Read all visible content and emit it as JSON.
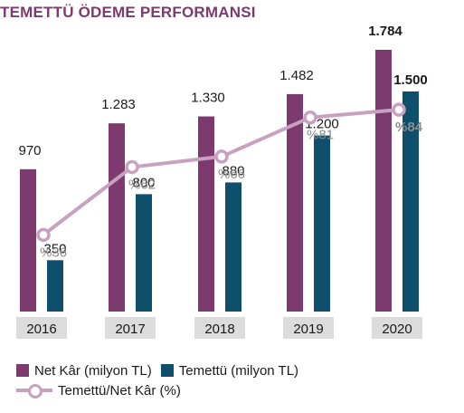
{
  "colors": {
    "title": "#7c3a6e",
    "net_kar": "#7c3a6e",
    "temettu": "#0e4f6b",
    "line": "#c9a1c0",
    "year_box": "#dcdcdc"
  },
  "legend": {
    "net_kar": "Net Kâr (milyon TL)",
    "temettu": "Temettü (milyon TL)",
    "ratio": "Temettü/Net Kâr (%)"
  },
  "chart_data": {
    "type": "bar",
    "title": "TEMETTÜ ÖDEME PERFORMANSI",
    "categories": [
      "2016",
      "2017",
      "2018",
      "2019",
      "2020"
    ],
    "series": [
      {
        "name": "Net Kâr (milyon TL)",
        "values": [
          970,
          1283,
          1330,
          1482,
          1784
        ],
        "labels": [
          "970",
          "1.283",
          "1.330",
          "1.482",
          "1.784"
        ]
      },
      {
        "name": "Temettü (milyon TL)",
        "values": [
          350,
          800,
          880,
          1200,
          1500
        ],
        "labels": [
          "350",
          "800",
          "880",
          "1.200",
          "1.500"
        ]
      }
    ],
    "line_series": {
      "name": "Temettü/Net Kâr (%)",
      "values": [
        36,
        62,
        66,
        81,
        84
      ],
      "labels": [
        "%36",
        "%62",
        "%66",
        "%81",
        "%84"
      ]
    },
    "ylim": [
      0,
      2000
    ],
    "line_ylim": [
      0,
      100
    ],
    "grid": false,
    "legend_position": "bottom-left"
  }
}
